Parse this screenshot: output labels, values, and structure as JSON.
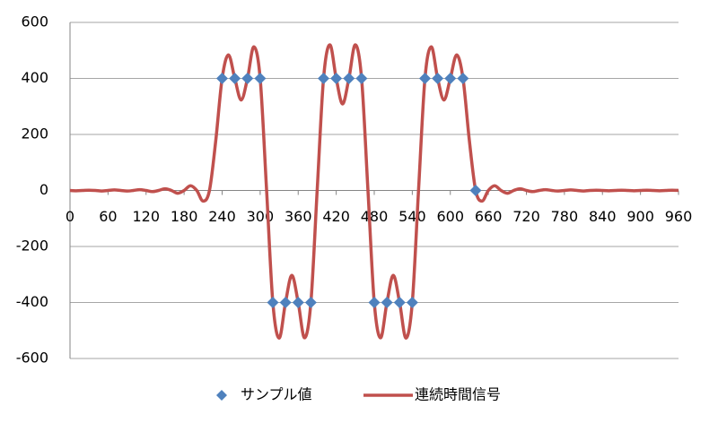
{
  "chart_data": {
    "type": "line",
    "xlim": [
      0,
      960
    ],
    "xticks": [
      0,
      60,
      120,
      180,
      240,
      300,
      360,
      420,
      480,
      540,
      600,
      660,
      720,
      780,
      840,
      900,
      960
    ],
    "ylim": [
      -600,
      600
    ],
    "yticks": [
      -600,
      -400,
      -200,
      0,
      200,
      400,
      600
    ],
    "grid": true,
    "legend": "bottom",
    "series": [
      {
        "name": "サンプル値",
        "type": "scatter",
        "color": "#4f81bd",
        "x": [
          240,
          260,
          280,
          300,
          320,
          340,
          360,
          380,
          400,
          420,
          440,
          460,
          480,
          500,
          520,
          540,
          560,
          580,
          600,
          620,
          640
        ],
        "values": [
          400,
          400,
          400,
          400,
          -400,
          -400,
          -400,
          -400,
          400,
          400,
          400,
          400,
          -400,
          -400,
          -400,
          -400,
          400,
          400,
          400,
          400,
          0
        ]
      },
      {
        "name": "連続時間信号",
        "type": "line",
        "color": "#c0504d",
        "x": [
          0,
          10,
          20,
          30,
          40,
          50,
          60,
          70,
          80,
          90,
          100,
          110,
          120,
          130,
          140,
          150,
          160,
          170,
          180,
          190,
          200,
          210,
          220,
          230,
          240,
          250,
          260,
          270,
          280,
          290,
          300,
          310,
          320,
          330,
          340,
          350,
          360,
          370,
          380,
          390,
          400,
          410,
          420,
          430,
          440,
          450,
          460,
          470,
          480,
          490,
          500,
          510,
          520,
          530,
          540,
          550,
          560,
          570,
          580,
          590,
          600,
          610,
          620,
          630,
          640,
          650,
          660,
          670,
          680,
          690,
          700,
          710,
          720,
          730,
          740,
          750,
          760,
          770,
          780,
          790,
          800,
          810,
          820,
          830,
          840,
          850,
          860,
          870,
          880,
          890,
          900,
          910,
          920,
          930,
          940,
          950,
          960
        ],
        "values": [
          0,
          -1,
          0,
          1,
          0,
          -2,
          0,
          2,
          0,
          -2,
          0,
          3,
          0,
          -4,
          0,
          6,
          0,
          -10,
          0,
          17,
          0,
          -38,
          0,
          179,
          400,
          484,
          400,
          323,
          400,
          513,
          400,
          7,
          -400,
          -527,
          -400,
          -303,
          -400,
          -526,
          -400,
          3,
          400,
          520,
          400,
          309,
          400,
          520,
          400,
          3,
          -400,
          -526,
          -400,
          -303,
          -400,
          -527,
          -400,
          7,
          400,
          513,
          400,
          323,
          400,
          484,
          400,
          179,
          0,
          -38,
          0,
          17,
          0,
          -10,
          0,
          6,
          0,
          -4,
          0,
          3,
          0,
          -2,
          0,
          2,
          0,
          -2,
          0,
          1,
          0,
          -1,
          0,
          1,
          0,
          -1,
          0,
          1,
          0,
          -1,
          0,
          1,
          0
        ]
      }
    ]
  }
}
